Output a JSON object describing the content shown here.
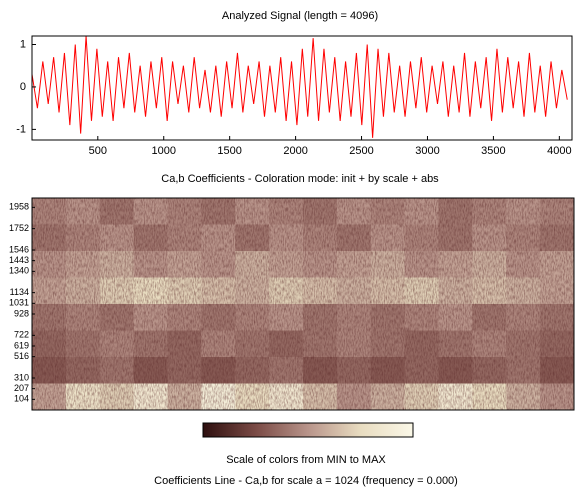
{
  "chart_data": [
    {
      "type": "line",
      "title": "Analyzed Signal  (length = 4096)",
      "color": "#ff0000",
      "xlim": [
        1,
        4096
      ],
      "ylim": [
        -1.25,
        1.2
      ],
      "xticks": [
        500,
        1000,
        1500,
        2000,
        2500,
        3000,
        3500,
        4000
      ],
      "yticks": [
        -1,
        0,
        1
      ],
      "x": [
        1,
        42,
        83,
        124,
        165,
        206,
        247,
        288,
        329,
        370,
        411,
        452,
        493,
        534,
        575,
        616,
        657,
        698,
        739,
        780,
        821,
        862,
        903,
        944,
        985,
        1026,
        1067,
        1108,
        1149,
        1190,
        1231,
        1272,
        1313,
        1354,
        1395,
        1436,
        1477,
        1518,
        1559,
        1600,
        1641,
        1682,
        1723,
        1764,
        1805,
        1846,
        1887,
        1928,
        1969,
        2010,
        2051,
        2092,
        2133,
        2174,
        2215,
        2256,
        2297,
        2338,
        2379,
        2420,
        2461,
        2502,
        2543,
        2584,
        2625,
        2666,
        2707,
        2748,
        2789,
        2830,
        2871,
        2912,
        2953,
        2994,
        3035,
        3076,
        3117,
        3158,
        3199,
        3240,
        3281,
        3322,
        3363,
        3404,
        3445,
        3486,
        3527,
        3568,
        3609,
        3650,
        3691,
        3732,
        3773,
        3814,
        3855,
        3896,
        3937,
        3978,
        4019,
        4060
      ],
      "values": [
        0.3,
        -0.5,
        0.6,
        -0.4,
        0.7,
        -0.6,
        0.8,
        -0.9,
        1.0,
        -1.1,
        1.2,
        -0.8,
        0.9,
        -0.7,
        0.6,
        -0.8,
        0.7,
        -0.5,
        0.8,
        -0.6,
        0.5,
        -0.7,
        0.6,
        -0.5,
        0.7,
        -0.8,
        0.6,
        -0.4,
        0.5,
        -0.6,
        0.7,
        -0.5,
        0.4,
        -0.6,
        0.5,
        -0.7,
        0.6,
        -0.5,
        0.8,
        -0.6,
        0.5,
        -0.4,
        0.6,
        -0.7,
        0.5,
        -0.6,
        0.7,
        -0.8,
        0.6,
        -0.9,
        0.9,
        -0.7,
        1.15,
        -0.8,
        0.9,
        -0.6,
        0.7,
        -0.8,
        0.6,
        -0.7,
        0.8,
        -0.9,
        1.0,
        -1.2,
        0.9,
        -0.7,
        0.8,
        -0.6,
        0.5,
        -0.7,
        0.6,
        -0.5,
        0.7,
        -0.6,
        0.5,
        -0.4,
        0.6,
        -0.7,
        0.5,
        -0.6,
        0.8,
        -0.7,
        0.6,
        -0.5,
        0.7,
        -0.8,
        0.9,
        -0.6,
        0.7,
        -0.5,
        0.6,
        -0.7,
        0.8,
        -0.6,
        0.5,
        -0.7,
        0.6,
        -0.5,
        0.4,
        -0.3
      ]
    },
    {
      "type": "heatmap",
      "title": "Ca,b Coefficients - Coloration mode: init + by scale + abs",
      "ylim": [
        1,
        2048
      ],
      "yticks": [
        104,
        207,
        310,
        516,
        619,
        722,
        928,
        1031,
        1134,
        1340,
        1443,
        1546,
        1752,
        1958
      ],
      "colormap": [
        "#2e0f0f",
        "#7a4a45",
        "#b8948a",
        "#e8dcc0",
        "#fbf8e8"
      ],
      "colorbar_label": "Scale of colors from MIN to MAX",
      "z": [
        [
          0.45,
          0.5,
          0.4,
          0.5,
          0.45,
          0.4,
          0.5,
          0.45,
          0.4,
          0.5,
          0.45,
          0.5,
          0.4,
          0.45,
          0.5,
          0.45
        ],
        [
          0.4,
          0.45,
          0.5,
          0.4,
          0.45,
          0.5,
          0.4,
          0.5,
          0.45,
          0.4,
          0.5,
          0.45,
          0.4,
          0.5,
          0.45,
          0.4
        ],
        [
          0.5,
          0.55,
          0.6,
          0.5,
          0.55,
          0.5,
          0.6,
          0.55,
          0.5,
          0.55,
          0.6,
          0.5,
          0.55,
          0.6,
          0.5,
          0.55
        ],
        [
          0.55,
          0.6,
          0.7,
          0.75,
          0.7,
          0.65,
          0.6,
          0.7,
          0.65,
          0.6,
          0.65,
          0.7,
          0.6,
          0.65,
          0.6,
          0.55
        ],
        [
          0.4,
          0.45,
          0.4,
          0.5,
          0.45,
          0.4,
          0.45,
          0.5,
          0.4,
          0.45,
          0.4,
          0.45,
          0.5,
          0.4,
          0.45,
          0.4
        ],
        [
          0.35,
          0.4,
          0.45,
          0.4,
          0.35,
          0.45,
          0.4,
          0.35,
          0.4,
          0.45,
          0.4,
          0.35,
          0.4,
          0.45,
          0.4,
          0.35
        ],
        [
          0.3,
          0.35,
          0.4,
          0.3,
          0.35,
          0.3,
          0.35,
          0.4,
          0.3,
          0.35,
          0.3,
          0.35,
          0.3,
          0.35,
          0.4,
          0.3
        ],
        [
          0.55,
          0.8,
          0.7,
          0.85,
          0.6,
          0.9,
          0.75,
          0.85,
          0.65,
          0.5,
          0.6,
          0.7,
          0.85,
          0.75,
          0.6,
          0.5
        ]
      ]
    },
    {
      "type": "line",
      "title": "Coefficients Line - Ca,b for scale a = 1024  (frequency =  0.000)"
    }
  ]
}
